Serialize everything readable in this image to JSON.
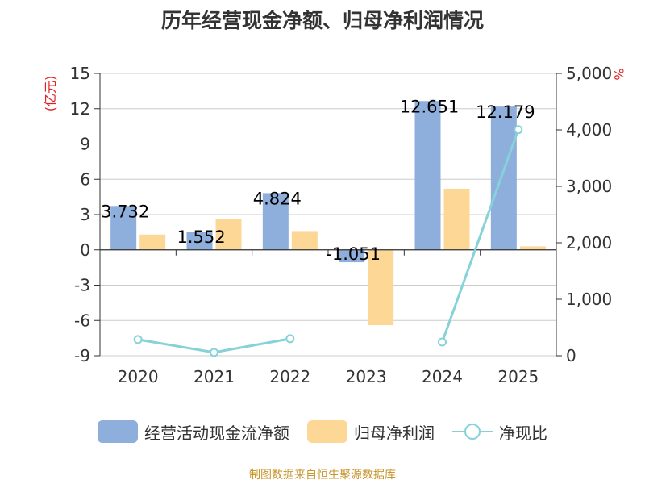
{
  "chart_data": {
    "type": "bar",
    "title": "历年经营现金净额、归母净利润情况",
    "categories": [
      "2020",
      "2021",
      "2022",
      "2023",
      "2024",
      "2025"
    ],
    "series": [
      {
        "name": "经营活动现金流净额",
        "kind": "bar",
        "axis": "left",
        "color": "#8eaedc",
        "values": [
          3.732,
          1.552,
          4.824,
          -1.051,
          12.651,
          12.179
        ],
        "labels": [
          "3.732",
          "1.552",
          "4.824",
          "-1.051",
          "12.651",
          "12.179"
        ]
      },
      {
        "name": "归母净利润",
        "kind": "bar",
        "axis": "left",
        "color": "#fdd796",
        "values": [
          1.3,
          2.6,
          1.6,
          -6.4,
          5.2,
          0.3
        ]
      },
      {
        "name": "净现比",
        "kind": "line",
        "axis": "right",
        "color": "#86d2d8",
        "values": [
          287,
          59,
          302,
          null,
          243,
          4004
        ]
      }
    ],
    "left_axis": {
      "label": "(亿元)",
      "min": -9,
      "max": 15,
      "ticks": [
        "15",
        "12",
        "9",
        "6",
        "3",
        "0",
        "-3",
        "-6",
        "-9"
      ]
    },
    "right_axis": {
      "label": "%",
      "min": 0,
      "max": 5000,
      "ticks": [
        "5,000",
        "4,000",
        "3,000",
        "2,000",
        "1,000",
        "0"
      ]
    },
    "legend_position": "bottom",
    "grid": true
  },
  "source": "制图数据来自恒生聚源数据库"
}
